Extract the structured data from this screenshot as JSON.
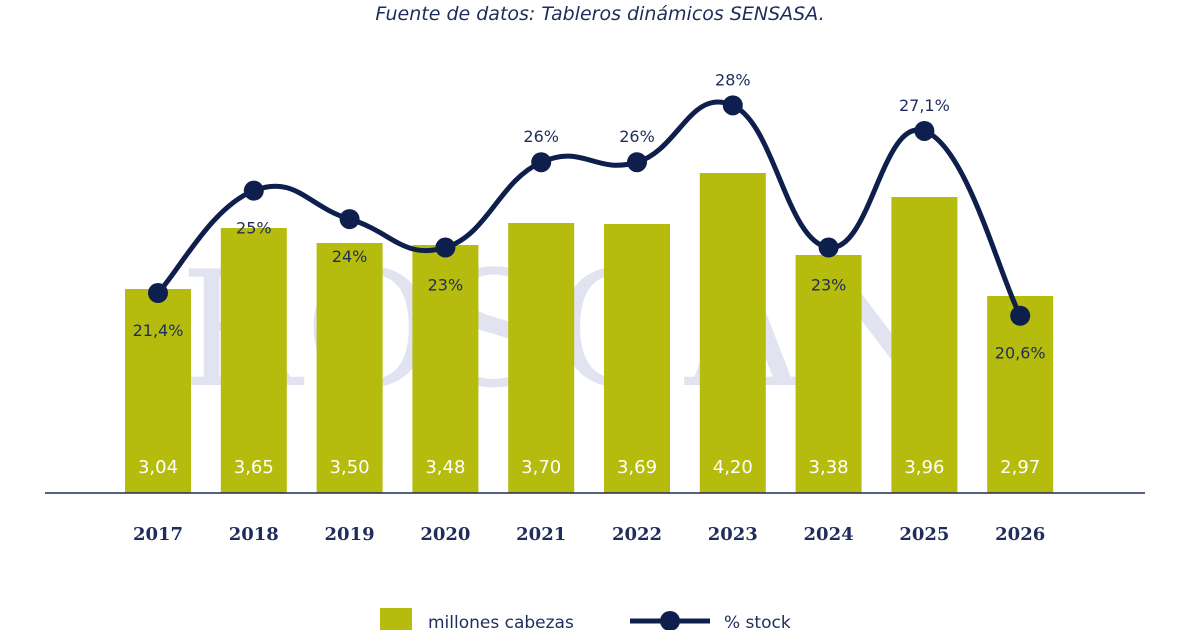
{
  "source_text": "Fuente de datos: Tableros dinámicos SENSASA.",
  "watermark_text": "ROSGAN",
  "chart_data": {
    "type": "bar",
    "categories": [
      "2017",
      "2018",
      "2019",
      "2020",
      "2021",
      "2022",
      "2023",
      "2024",
      "2025",
      "2026"
    ],
    "series": [
      {
        "name": "millones cabezas",
        "type": "bar",
        "values": [
          3.04,
          3.65,
          3.5,
          3.48,
          3.7,
          3.69,
          4.2,
          3.38,
          3.96,
          2.97
        ],
        "labels": [
          "3,04",
          "3,65",
          "3,50",
          "3,48",
          "3,70",
          "3,69",
          "4,20",
          "3,38",
          "3,96",
          "2,97"
        ]
      },
      {
        "name": "% stock",
        "type": "line",
        "values": [
          21.4,
          25,
          24,
          23,
          26,
          26,
          28,
          23,
          27.1,
          20.6
        ],
        "labels": [
          "21,4%",
          "25%",
          "24%",
          "23%",
          "26%",
          "26%",
          "28%",
          "23%",
          "27,1%",
          "20,6%"
        ]
      }
    ],
    "legend": [
      "millones cabezas",
      "% stock"
    ],
    "legend_position": "bottom",
    "colors": {
      "bar": "#b5bc0d",
      "line": "#0f1f4d",
      "axis": "#1f2d5a",
      "bar_label": "#ffffff"
    }
  }
}
